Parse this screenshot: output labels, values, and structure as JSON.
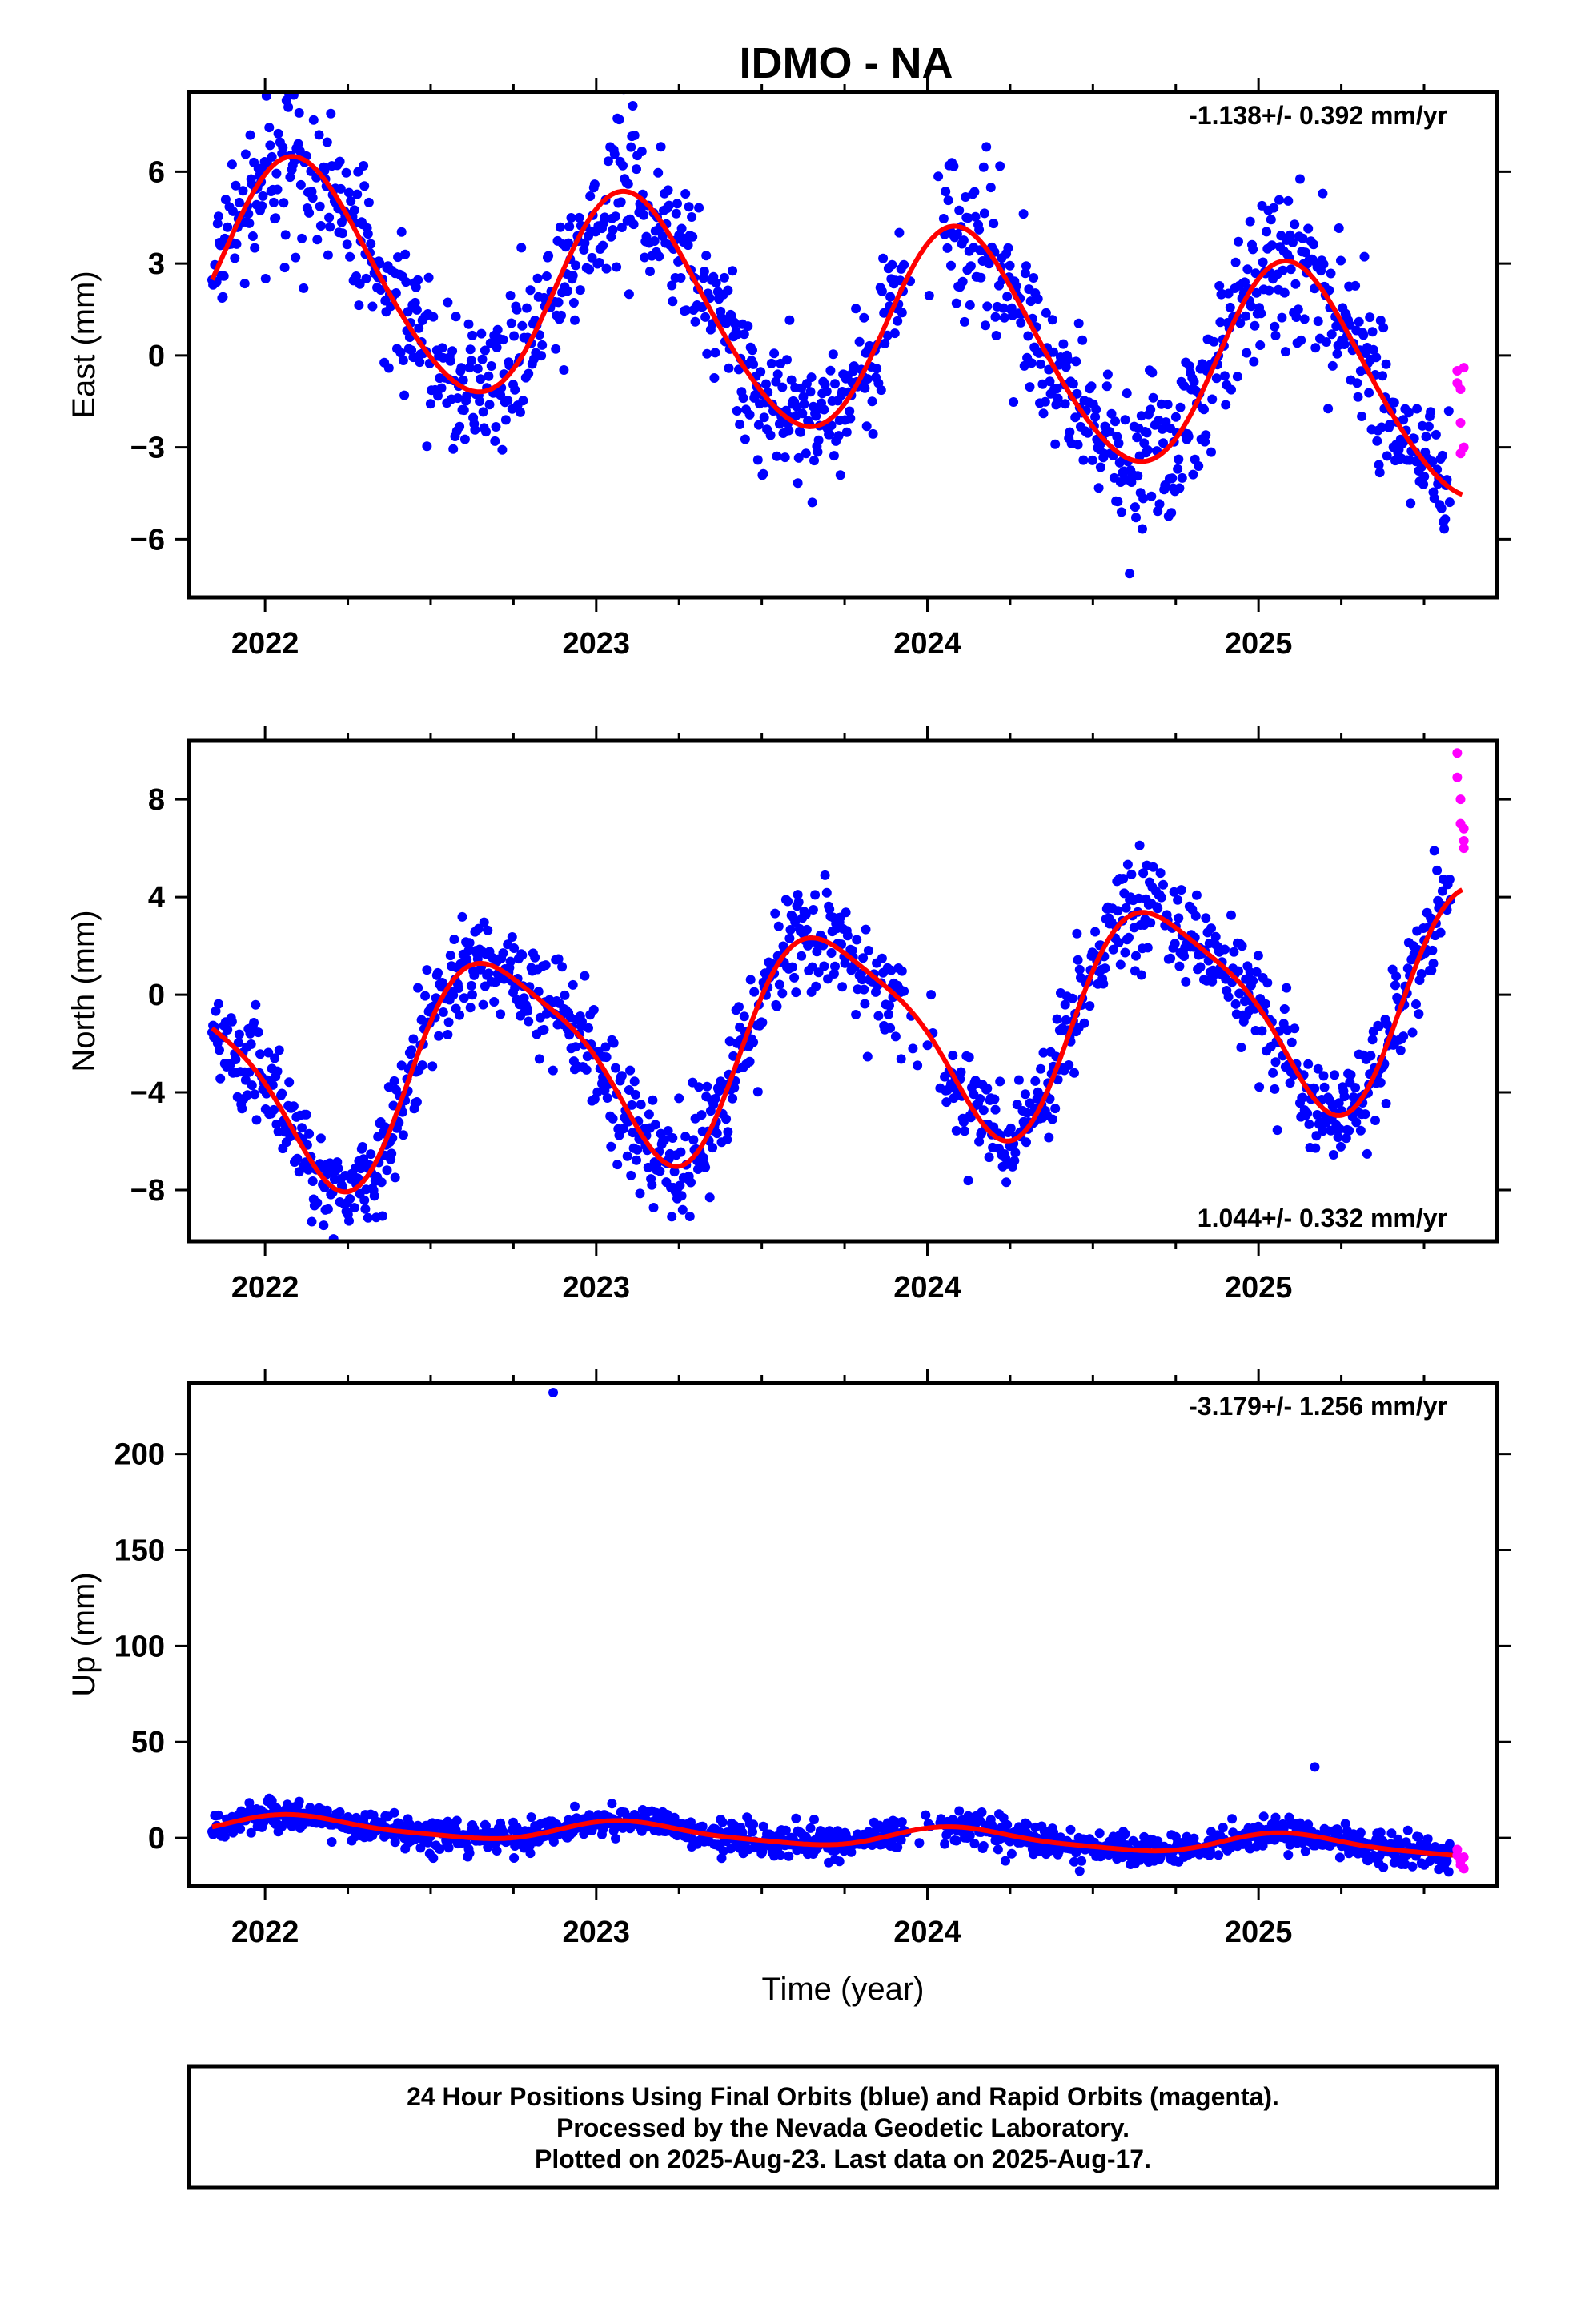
{
  "title": "IDMO - NA",
  "colors": {
    "final": "#0000ff",
    "rapid": "#ff00ff",
    "fit": "#ff0000",
    "frame": "#000000"
  },
  "footer": {
    "line1": "24 Hour Positions Using Final Orbits (blue) and Rapid Orbits (magenta).",
    "line2": "Processed by the Nevada Geodetic Laboratory.",
    "line3": "Plotted on 2025-Aug-23. Last data on 2025-Aug-17."
  },
  "chart_data": [
    {
      "type": "scatter",
      "component": "east",
      "ylabel": "East (mm)",
      "xlabel": "",
      "rate_label": "-1.138+/- 0.392 mm/yr",
      "rate_position": "top-right",
      "xlim": [
        2021.77,
        2025.72
      ],
      "ylim": [
        -7.9,
        8.6
      ],
      "xticks": [
        2022,
        2023,
        2024,
        2025
      ],
      "xtick_labels": [
        "2022",
        "2023",
        "2024",
        "2025"
      ],
      "yticks": [
        -6,
        -3,
        0,
        3,
        6
      ],
      "ytick_labels": [
        "−6",
        "−3",
        "0",
        "3",
        "6"
      ],
      "trend": {
        "t0": 2021.84,
        "v0": 3.1,
        "rate": -1.138
      },
      "seasonal": {
        "a1": 2.7,
        "b1": 2.2,
        "a2": 0.3,
        "b2": 0.1
      },
      "scatter_sd": 1.2,
      "final_range": [
        2021.84,
        2025.58
      ],
      "rapid_x": [
        2025.6,
        2025.6,
        2025.61,
        2025.61,
        2025.61,
        2025.62,
        2025.62
      ],
      "rapid_values": [
        -0.5,
        -0.9,
        -1.1,
        -3.2,
        -2.2,
        -0.4,
        -3.0
      ]
    },
    {
      "type": "scatter",
      "component": "north",
      "ylabel": "North (mm)",
      "xlabel": "",
      "rate_label": "1.044+/- 0.332 mm/yr",
      "rate_position": "bottom-right",
      "xlim": [
        2021.77,
        2025.72
      ],
      "ylim": [
        -10.1,
        10.4
      ],
      "xticks": [
        2022,
        2023,
        2024,
        2025
      ],
      "xtick_labels": [
        "2022",
        "2023",
        "2024",
        "2025"
      ],
      "yticks": [
        -8,
        -4,
        0,
        4,
        8
      ],
      "ytick_labels": [
        "−8",
        "−4",
        "0",
        "4",
        "8"
      ],
      "trend": {
        "t0": 2021.84,
        "v0": -3.6,
        "rate": 1.044
      },
      "seasonal": {
        "a1": -1.0,
        "b1": -4.1,
        "a2": 0.8,
        "b2": 0.4
      },
      "scatter_sd": 1.1,
      "final_range": [
        2021.84,
        2025.58
      ],
      "rapid_x": [
        2025.6,
        2025.6,
        2025.61,
        2025.61,
        2025.62,
        2025.62,
        2025.62
      ],
      "rapid_values": [
        9.9,
        8.9,
        8.0,
        7.0,
        6.8,
        6.3,
        6.0
      ]
    },
    {
      "type": "scatter",
      "component": "up",
      "ylabel": "Up (mm)",
      "xlabel": "Time (year)",
      "rate_label": "-3.179+/- 1.256 mm/yr",
      "rate_position": "top-right",
      "xlim": [
        2021.77,
        2025.72
      ],
      "ylim": [
        -25,
        237
      ],
      "xticks": [
        2022,
        2023,
        2024,
        2025
      ],
      "xtick_labels": [
        "2022",
        "2023",
        "2024",
        "2025"
      ],
      "yticks": [
        0,
        50,
        100,
        150,
        200
      ],
      "ytick_labels": [
        "0",
        "50",
        "100",
        "150",
        "200"
      ],
      "trend": {
        "t0": 2021.84,
        "v0": 7.0,
        "rate": -3.179
      },
      "seasonal": {
        "a1": 4.0,
        "b1": 3.0,
        "a2": 1.0,
        "b2": 0.5
      },
      "scatter_sd": 4.0,
      "final_range": [
        2021.84,
        2025.58
      ],
      "outliers": [
        [
          2022.87,
          232
        ],
        [
          2025.17,
          37
        ]
      ],
      "rapid_x": [
        2025.6,
        2025.6,
        2025.61,
        2025.61,
        2025.62,
        2025.62
      ],
      "rapid_values": [
        -6,
        -9,
        -12,
        -14,
        -16,
        -10
      ]
    }
  ]
}
